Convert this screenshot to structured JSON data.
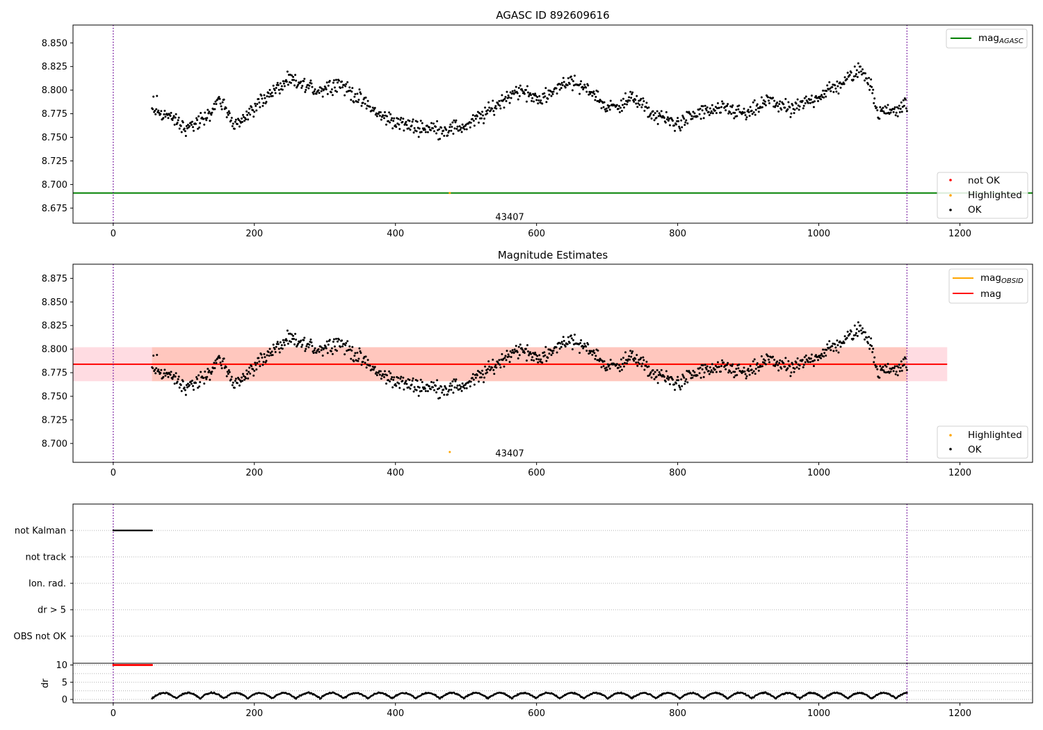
{
  "chart_data": [
    {
      "panel": "top",
      "type": "scatter",
      "title": "AGASC ID 892609616",
      "xlim": [
        -57,
        1303
      ],
      "ylim": [
        8.659,
        8.869
      ],
      "x_ticks": [
        0,
        200,
        400,
        600,
        800,
        1000,
        1200
      ],
      "y_ticks": [
        8.675,
        8.7,
        8.725,
        8.75,
        8.775,
        8.8,
        8.825,
        8.85
      ],
      "obs_boundaries": [
        0,
        1125
      ],
      "obsid_labels": [
        {
          "x": 562,
          "y": 8.666,
          "text": "43407"
        }
      ],
      "reference_lines": [
        {
          "name": "mag",
          "subscript": "AGASC",
          "value": 8.691,
          "color": "#008000"
        }
      ],
      "points_range": [
        55,
        1125
      ],
      "highlighted_points": [
        {
          "x": 477,
          "y": 8.691
        }
      ],
      "legend_lines": [
        {
          "name": "mag",
          "subscript": "AGASC",
          "color": "#008000"
        }
      ],
      "legend_markers": [
        {
          "label": "not OK",
          "color": "#ff0000"
        },
        {
          "label": "Highlighted",
          "color": "#ffa500"
        },
        {
          "label": "OK",
          "color": "#000000"
        }
      ],
      "legend_placement": [
        "top-right",
        "bottom-right"
      ],
      "grid": false
    },
    {
      "panel": "middle",
      "type": "scatter",
      "title": "Magnitude Estimates",
      "xlim": [
        -57,
        1303
      ],
      "ylim": [
        8.68,
        8.89
      ],
      "x_ticks": [
        0,
        200,
        400,
        600,
        800,
        1000,
        1200
      ],
      "y_ticks": [
        8.7,
        8.725,
        8.75,
        8.775,
        8.8,
        8.825,
        8.85,
        8.875
      ],
      "obs_boundaries": [
        0,
        1125
      ],
      "obsid_labels": [
        {
          "x": 562,
          "y": 8.69,
          "text": "43407"
        }
      ],
      "reference_lines": [
        {
          "name": "mag",
          "value": 8.784,
          "color": "#ff0000",
          "band": [
            8.766,
            8.802
          ],
          "band_x": [
            -57,
            1182
          ]
        }
      ],
      "obsid_band": {
        "name": "mag",
        "subscript": "OBSID",
        "range": [
          8.766,
          8.802
        ],
        "x": [
          55,
          1125
        ],
        "color": "#ffa500"
      },
      "points_range": [
        55,
        1125
      ],
      "highlighted_points": [
        {
          "x": 477,
          "y": 8.691
        }
      ],
      "legend_lines": [
        {
          "name": "mag",
          "subscript": "OBSID",
          "color": "#ffa500"
        },
        {
          "name": "mag",
          "subscript": "",
          "color": "#ff0000"
        }
      ],
      "legend_markers": [
        {
          "label": "Highlighted",
          "color": "#ffa500"
        },
        {
          "label": "OK",
          "color": "#000000"
        }
      ],
      "legend_placement": [
        "top-right",
        "bottom-right"
      ],
      "grid": false
    },
    {
      "panel": "flags",
      "type": "scatter",
      "categories": [
        "not Kalman",
        "not track",
        "Ion. rad.",
        "dr > 5",
        "OBS not OK"
      ],
      "xlim": [
        -57,
        1303
      ],
      "obs_boundaries": [
        0,
        1125
      ],
      "flagged_ranges": [
        {
          "category": "not Kalman",
          "x": [
            0,
            55
          ],
          "color": "#000000"
        }
      ],
      "grid": "horizontal-dotted"
    },
    {
      "panel": "dr",
      "type": "scatter",
      "ylabel": "dr",
      "xlim": [
        -57,
        1303
      ],
      "ylim": [
        -1,
        10.5
      ],
      "x_ticks": [
        0,
        200,
        400,
        600,
        800,
        1000,
        1200
      ],
      "y_ticks": [
        0,
        5,
        10
      ],
      "obs_boundaries": [
        0,
        1125
      ],
      "clipped_range": {
        "x": [
          0,
          55
        ],
        "value": 10,
        "color": "#ff0000"
      },
      "points_range": [
        55,
        1125
      ],
      "dr_typical": [
        0.3,
        2.4
      ],
      "grid": "horizontal-dotted"
    }
  ]
}
